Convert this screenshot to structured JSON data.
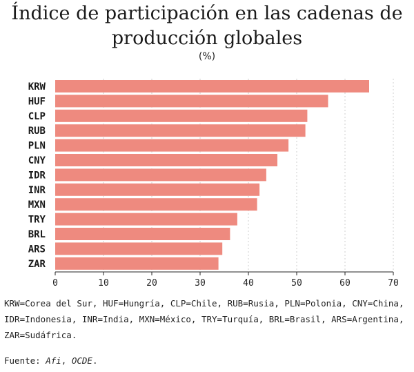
{
  "title": "Índice de participación en las cadenas de producción globales",
  "subtitle": "(%)",
  "footnote": "KRW=Corea del Sur, HUF=Hungría, CLP=Chile, RUB=Rusia, PLN=Polonia, CNY=China, IDR=Indonesia, INR=India, MXN=México, TRY=Turquía, BRL=Brasil, ARS=Argentina, ZAR=Sudáfrica.",
  "source": {
    "prefix": "Fuente: ",
    "afi": "Afi",
    "sep": ", ",
    "ocde": "OCDE",
    "end": "."
  },
  "colors": {
    "bar": "#ee8a7f",
    "grid": "#cfcfcf"
  },
  "chart_data": {
    "type": "bar",
    "orientation": "horizontal",
    "categories": [
      "KRW",
      "HUF",
      "CLP",
      "RUB",
      "PLN",
      "CNY",
      "IDR",
      "INR",
      "MXN",
      "TRY",
      "BRL",
      "ARS",
      "ZAR"
    ],
    "values": [
      65,
      56.5,
      52.2,
      51.8,
      48.3,
      46,
      43.7,
      42.3,
      41.8,
      37.7,
      36.2,
      34.6,
      33.8
    ],
    "xlim": [
      0,
      70
    ],
    "xticks": [
      0,
      10,
      20,
      30,
      40,
      50,
      60,
      70
    ],
    "grid": "vertical dotted"
  }
}
